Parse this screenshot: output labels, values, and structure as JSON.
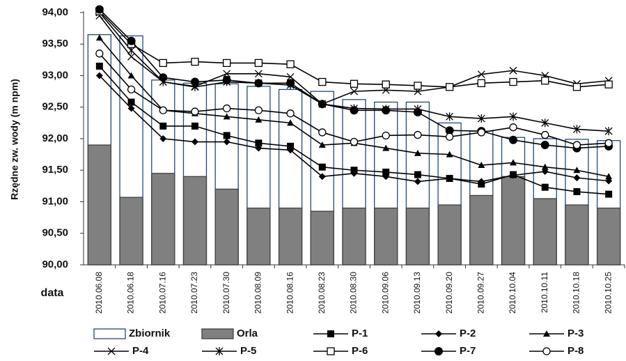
{
  "chart_data": {
    "type": "combo",
    "ylabel": "Rzędne zw. wody (m npm)",
    "xlabel": "data",
    "categories": [
      "2010.06.08",
      "2010.06.18",
      "2010.07.16",
      "2010.07.23",
      "2010.07.30",
      "2010.08.09",
      "2010.08.16",
      "2010.08.23",
      "2010.08.30",
      "2010.09.06",
      "2010.09.13",
      "2010.09.20",
      "2010.09.27",
      "2010.10.04",
      "2010.10.11",
      "2010.10.18",
      "2010.10.25"
    ],
    "ylim": [
      90,
      94
    ],
    "yticks": [
      {
        "value": 90,
        "label": "90,00"
      },
      {
        "value": 90.5,
        "label": "90,50"
      },
      {
        "value": 91,
        "label": "91,00"
      },
      {
        "value": 91.5,
        "label": "91,50"
      },
      {
        "value": 92,
        "label": "92,00"
      },
      {
        "value": 92.5,
        "label": "92,50"
      },
      {
        "value": 93,
        "label": "93,00"
      },
      {
        "value": 93.5,
        "label": "93,50"
      },
      {
        "value": 94,
        "label": "94,00"
      }
    ],
    "grid": false,
    "series": [
      {
        "name": "Zbiornik",
        "type": "bar",
        "color": "#ffffff",
        "edgecolor": "#1f497d",
        "values": [
          93.65,
          93.63,
          92.93,
          92.88,
          92.87,
          92.83,
          92.78,
          92.75,
          92.62,
          92.58,
          92.58,
          92.25,
          92.12,
          92.02,
          92.0,
          91.99,
          91.97
        ]
      },
      {
        "name": "Orla",
        "type": "bar",
        "color": "#808080",
        "edgecolor": "#404040",
        "values": [
          91.9,
          91.07,
          91.45,
          91.4,
          91.2,
          90.9,
          90.9,
          90.85,
          90.9,
          90.9,
          90.9,
          90.95,
          91.1,
          91.4,
          91.05,
          90.95,
          90.9
        ]
      },
      {
        "name": "P-1",
        "type": "line",
        "color": "#000000",
        "marker": "square",
        "values": [
          93.15,
          92.58,
          92.2,
          92.2,
          92.05,
          91.93,
          91.88,
          91.55,
          91.5,
          91.47,
          91.43,
          91.37,
          91.28,
          91.43,
          91.23,
          91.16,
          91.12
        ]
      },
      {
        "name": "P-2",
        "type": "line",
        "color": "#000000",
        "marker": "diamond",
        "values": [
          93.0,
          92.48,
          92.0,
          91.95,
          91.95,
          91.85,
          91.82,
          91.4,
          91.45,
          91.4,
          91.32,
          91.37,
          91.32,
          91.42,
          91.48,
          91.38,
          91.33
        ]
      },
      {
        "name": "P-3",
        "type": "line",
        "color": "#000000",
        "marker": "triangle",
        "values": [
          93.6,
          93.0,
          92.45,
          92.4,
          92.35,
          92.3,
          92.25,
          91.9,
          91.93,
          91.85,
          91.77,
          91.75,
          91.58,
          91.62,
          91.55,
          91.5,
          91.4
        ]
      },
      {
        "name": "P-4",
        "type": "line",
        "color": "#000000",
        "marker": "cross",
        "values": [
          93.95,
          93.3,
          92.9,
          92.83,
          93.03,
          93.03,
          92.98,
          92.55,
          92.75,
          92.77,
          92.75,
          92.82,
          93.02,
          93.08,
          93.0,
          92.87,
          92.92
        ]
      },
      {
        "name": "P-5",
        "type": "line",
        "color": "#000000",
        "marker": "asterisk",
        "values": [
          94.0,
          93.4,
          92.9,
          92.82,
          92.9,
          92.88,
          92.85,
          92.55,
          92.48,
          92.47,
          92.47,
          92.35,
          92.32,
          92.35,
          92.25,
          92.15,
          92.12
        ]
      },
      {
        "name": "P-6",
        "type": "line",
        "color": "#000000",
        "marker": "square-open",
        "values": [
          94.02,
          93.5,
          93.2,
          93.22,
          93.2,
          93.2,
          93.18,
          92.9,
          92.87,
          92.86,
          92.84,
          92.82,
          92.88,
          92.9,
          92.92,
          92.82,
          92.86
        ]
      },
      {
        "name": "P-7",
        "type": "line",
        "color": "#000000",
        "marker": "circle",
        "values": [
          94.05,
          93.55,
          92.97,
          92.9,
          92.93,
          92.88,
          92.88,
          92.55,
          92.45,
          92.45,
          92.42,
          92.13,
          92.12,
          91.98,
          91.9,
          91.85,
          91.88
        ]
      },
      {
        "name": "P-8",
        "type": "line",
        "color": "#000000",
        "marker": "circle-open",
        "values": [
          93.35,
          92.78,
          92.45,
          92.43,
          92.48,
          92.45,
          92.4,
          92.1,
          91.95,
          92.05,
          92.06,
          92.03,
          92.1,
          92.18,
          92.06,
          91.9,
          91.93
        ]
      }
    ]
  }
}
